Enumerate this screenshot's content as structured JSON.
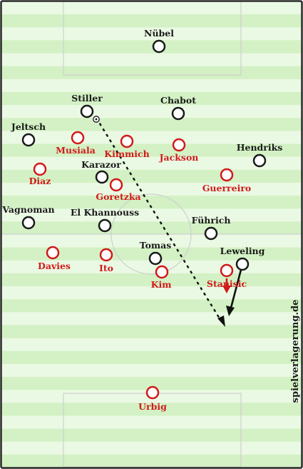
{
  "colors": {
    "grass_light": "#eaf9e3",
    "grass_dark": "#d3f1c4",
    "line": "#cfcfcf",
    "frame": "#2a2a2a",
    "home": "#d11a1a",
    "away": "#1a1a1a",
    "arrow_red": "#d11a1a"
  },
  "watermark": "spielverlagerung.de",
  "players": {
    "nuebel": "Nübel",
    "stiller": "Stiller",
    "chabot": "Chabot",
    "jeltsch": "Jeltsch",
    "musiala": "Musiala",
    "kimmich": "Kimmich",
    "jackson": "Jackson",
    "hendriks": "Hendriks",
    "diaz": "Diaz",
    "karazor": "Karazor",
    "goretzka": "Goretzka",
    "guerreiro": "Guerreiro",
    "vagnoman": "Vagnoman",
    "el_khannouss": "El Khannouss",
    "fuehrich": "Führich",
    "tomas": "Tomas",
    "leweling": "Leweling",
    "davies": "Davies",
    "ito": "Ito",
    "kim": "Kim",
    "stanisic": "Stanisic",
    "urbig": "Urbig"
  }
}
